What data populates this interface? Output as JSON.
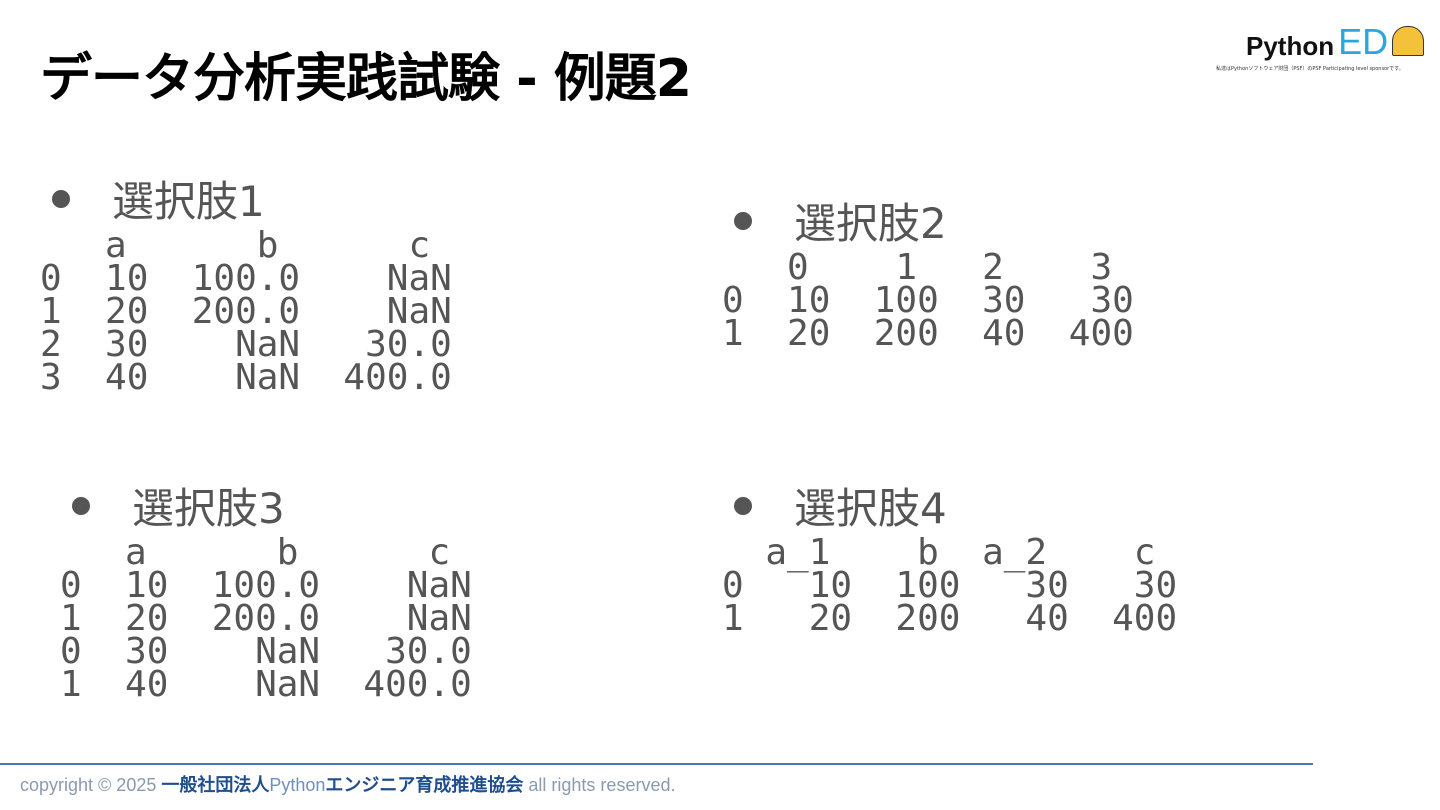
{
  "title": "データ分析実践試験 - 例題2",
  "logo": {
    "python": "Python",
    "ed": "ED",
    "badge": "PARTICIPATING",
    "tagline": "私達はPythonソフトウェア財団（PSF）のPSF Participating level sponsorです。"
  },
  "options": [
    {
      "label": "選択肢1",
      "lines": [
        "   a      b      c",
        "0  10  100.0    NaN",
        "1  20  200.0    NaN",
        "2  30    NaN   30.0",
        "3  40    NaN  400.0"
      ]
    },
    {
      "label": "選択肢2",
      "lines": [
        "   0    1   2    3",
        "0  10  100  30   30",
        "1  20  200  40  400"
      ]
    },
    {
      "label": "選択肢3",
      "lines": [
        "   a      b      c",
        "0  10  100.0    NaN",
        "1  20  200.0    NaN",
        "0  30    NaN   30.0",
        "1  40    NaN  400.0"
      ]
    },
    {
      "label": "選択肢4",
      "lines": [
        "  a_1    b  a_2    c",
        "0   10  100   30   30",
        "1   20  200   40  400"
      ]
    }
  ],
  "footer": {
    "prefix": "copyright © 2025 ",
    "org1": "一般社団法人",
    "py": "Python",
    "org2": "エンジニア育成推進協会",
    "suffix": " all rights reserved."
  }
}
